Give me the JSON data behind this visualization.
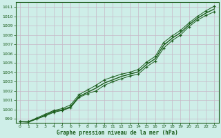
{
  "title": "Graphe pression niveau de la mer (hPa)",
  "bg_color": "#ceeee8",
  "grid_color": "#c8b8c8",
  "line_color": "#1a5c1a",
  "xlim_min": -0.5,
  "xlim_max": 23.5,
  "ylim_min": 998.6,
  "ylim_max": 1011.5,
  "xticks": [
    0,
    1,
    2,
    3,
    4,
    5,
    6,
    7,
    8,
    9,
    10,
    11,
    12,
    13,
    14,
    15,
    16,
    17,
    18,
    19,
    20,
    21,
    22,
    23
  ],
  "yticks": [
    999,
    1000,
    1001,
    1002,
    1003,
    1004,
    1005,
    1006,
    1007,
    1008,
    1009,
    1010,
    1011
  ],
  "hours": [
    0,
    1,
    2,
    3,
    4,
    5,
    6,
    7,
    8,
    9,
    10,
    11,
    12,
    13,
    14,
    15,
    16,
    17,
    18,
    19,
    20,
    21,
    22,
    23
  ],
  "line_upper": [
    998.7,
    998.7,
    999.1,
    999.5,
    999.9,
    1000.1,
    1000.5,
    1001.6,
    1002.1,
    1002.6,
    1003.2,
    1003.5,
    1003.8,
    1004.0,
    1004.3,
    1005.1,
    1005.7,
    1007.2,
    1007.9,
    1008.5,
    1009.3,
    1010.0,
    1010.6,
    1011.1
  ],
  "line_lower": [
    998.7,
    998.7,
    999.0,
    999.3,
    999.7,
    999.9,
    1000.2,
    1001.3,
    1001.7,
    1002.0,
    1002.6,
    1003.0,
    1003.3,
    1003.6,
    1003.8,
    1004.6,
    1005.2,
    1006.6,
    1007.4,
    1008.0,
    1008.9,
    1009.6,
    1010.1,
    1010.5
  ],
  "line_smooth": [
    998.7,
    998.65,
    999.0,
    999.4,
    999.8,
    999.95,
    1000.3,
    1001.4,
    1001.85,
    1002.3,
    1002.85,
    1003.2,
    1003.55,
    1003.8,
    1004.05,
    1004.85,
    1005.45,
    1006.9,
    1007.65,
    1008.25,
    1009.1,
    1009.8,
    1010.35,
    1010.8
  ]
}
